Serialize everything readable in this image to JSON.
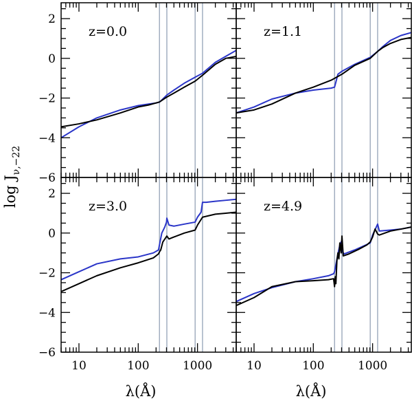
{
  "chart_data": {
    "type": "line",
    "layout": "2x2 grid of panels sharing axes",
    "xlabel": "λ(Å)",
    "ylabel": "log J",
    "ylabel_subscript": "ν,−22",
    "x_scale": "log",
    "xlim": [
      5,
      4500
    ],
    "ylim": [
      -6,
      2.8
    ],
    "x_ticks": [
      10,
      100,
      1000
    ],
    "x_tick_labels": [
      "10",
      "100",
      "1000"
    ],
    "y_ticks": [
      -6,
      -4,
      -2,
      0,
      2
    ],
    "y_tick_labels": [
      "−6",
      "−4",
      "−2",
      "0",
      "2"
    ],
    "vertical_lines": [
      228,
      304,
      912,
      1216
    ],
    "vertical_line_color": "#8a9ab0",
    "colors": {
      "blue": "#2a35c8",
      "black": "#000000"
    },
    "panels": [
      {
        "label": "z=0.0",
        "series": [
          {
            "color": "blue",
            "points": [
              [
                5,
                -4.0
              ],
              [
                10,
                -3.45
              ],
              [
                20,
                -3.0
              ],
              [
                50,
                -2.6
              ],
              [
                100,
                -2.38
              ],
              [
                150,
                -2.3
              ],
              [
                200,
                -2.25
              ],
              [
                228,
                -2.2
              ],
              [
                240,
                -2.15
              ],
              [
                304,
                -1.85
              ],
              [
                400,
                -1.6
              ],
              [
                600,
                -1.25
              ],
              [
                912,
                -0.95
              ],
              [
                1216,
                -0.75
              ],
              [
                2000,
                -0.2
              ],
              [
                3000,
                0.1
              ],
              [
                4500,
                0.4
              ]
            ]
          },
          {
            "color": "black",
            "points": [
              [
                5,
                -3.45
              ],
              [
                10,
                -3.3
              ],
              [
                20,
                -3.1
              ],
              [
                50,
                -2.75
              ],
              [
                100,
                -2.45
              ],
              [
                150,
                -2.35
              ],
              [
                228,
                -2.2
              ],
              [
                304,
                -1.95
              ],
              [
                400,
                -1.75
              ],
              [
                600,
                -1.45
              ],
              [
                912,
                -1.15
              ],
              [
                1216,
                -0.85
              ],
              [
                2000,
                -0.3
              ],
              [
                3000,
                0.0
              ],
              [
                4500,
                0.1
              ]
            ]
          }
        ]
      },
      {
        "label": "z=1.1",
        "series": [
          {
            "color": "blue",
            "points": [
              [
                5,
                -2.75
              ],
              [
                10,
                -2.45
              ],
              [
                20,
                -2.05
              ],
              [
                50,
                -1.75
              ],
              [
                100,
                -1.6
              ],
              [
                200,
                -1.5
              ],
              [
                228,
                -1.45
              ],
              [
                240,
                -1.2
              ],
              [
                260,
                -0.8
              ],
              [
                304,
                -0.65
              ],
              [
                500,
                -0.3
              ],
              [
                912,
                0.05
              ],
              [
                1216,
                0.35
              ],
              [
                1500,
                0.6
              ],
              [
                2000,
                0.9
              ],
              [
                3000,
                1.15
              ],
              [
                4500,
                1.3
              ]
            ]
          },
          {
            "color": "black",
            "points": [
              [
                5,
                -2.75
              ],
              [
                10,
                -2.6
              ],
              [
                20,
                -2.3
              ],
              [
                50,
                -1.75
              ],
              [
                100,
                -1.45
              ],
              [
                200,
                -1.1
              ],
              [
                304,
                -0.8
              ],
              [
                500,
                -0.35
              ],
              [
                912,
                0.0
              ],
              [
                1216,
                0.35
              ],
              [
                1500,
                0.55
              ],
              [
                2000,
                0.75
              ],
              [
                3000,
                0.95
              ],
              [
                4500,
                1.05
              ]
            ]
          }
        ]
      },
      {
        "label": "z=3.0",
        "series": [
          {
            "color": "blue",
            "points": [
              [
                5,
                -2.35
              ],
              [
                10,
                -1.95
              ],
              [
                20,
                -1.55
              ],
              [
                50,
                -1.3
              ],
              [
                100,
                -1.2
              ],
              [
                180,
                -1.0
              ],
              [
                220,
                -0.85
              ],
              [
                228,
                -0.6
              ],
              [
                250,
                0.0
              ],
              [
                280,
                0.3
              ],
              [
                300,
                0.55
              ],
              [
                304,
                0.75
              ],
              [
                330,
                0.4
              ],
              [
                400,
                0.35
              ],
              [
                600,
                0.45
              ],
              [
                912,
                0.55
              ],
              [
                1000,
                0.8
              ],
              [
                1150,
                1.05
              ],
              [
                1216,
                1.55
              ],
              [
                1400,
                1.55
              ],
              [
                2000,
                1.6
              ],
              [
                3000,
                1.65
              ],
              [
                4500,
                1.7
              ]
            ]
          },
          {
            "color": "black",
            "points": [
              [
                5,
                -2.95
              ],
              [
                10,
                -2.55
              ],
              [
                20,
                -2.15
              ],
              [
                50,
                -1.75
              ],
              [
                100,
                -1.5
              ],
              [
                180,
                -1.25
              ],
              [
                220,
                -1.05
              ],
              [
                228,
                -0.95
              ],
              [
                240,
                -0.85
              ],
              [
                260,
                -0.45
              ],
              [
                304,
                -0.15
              ],
              [
                330,
                -0.3
              ],
              [
                400,
                -0.2
              ],
              [
                600,
                0.0
              ],
              [
                912,
                0.15
              ],
              [
                1000,
                0.4
              ],
              [
                1216,
                0.8
              ],
              [
                2000,
                0.95
              ],
              [
                3000,
                1.0
              ],
              [
                4500,
                1.05
              ]
            ]
          }
        ]
      },
      {
        "label": "z=4.9",
        "series": [
          {
            "color": "blue",
            "points": [
              [
                5,
                -3.45
              ],
              [
                10,
                -3.05
              ],
              [
                20,
                -2.75
              ],
              [
                50,
                -2.45
              ],
              [
                100,
                -2.3
              ],
              [
                180,
                -2.15
              ],
              [
                220,
                -2.05
              ],
              [
                228,
                -1.95
              ],
              [
                260,
                -1.05
              ],
              [
                280,
                -0.6
              ],
              [
                300,
                -0.4
              ],
              [
                304,
                -0.9
              ],
              [
                330,
                -1.05
              ],
              [
                500,
                -0.85
              ],
              [
                912,
                -0.5
              ],
              [
                1000,
                -0.1
              ],
              [
                1216,
                0.45
              ],
              [
                1300,
                0.1
              ],
              [
                2000,
                0.15
              ],
              [
                3000,
                0.2
              ],
              [
                4500,
                0.3
              ]
            ]
          },
          {
            "color": "black",
            "points": [
              [
                5,
                -3.65
              ],
              [
                10,
                -3.25
              ],
              [
                20,
                -2.7
              ],
              [
                50,
                -2.45
              ],
              [
                100,
                -2.4
              ],
              [
                180,
                -2.35
              ],
              [
                220,
                -2.3
              ],
              [
                228,
                -2.7
              ],
              [
                235,
                -2.2
              ],
              [
                240,
                -2.55
              ],
              [
                250,
                -1.4
              ],
              [
                260,
                -1.0
              ],
              [
                270,
                -1.3
              ],
              [
                280,
                -0.5
              ],
              [
                295,
                -1.0
              ],
              [
                304,
                -0.15
              ],
              [
                320,
                -1.15
              ],
              [
                400,
                -1.05
              ],
              [
                600,
                -0.8
              ],
              [
                800,
                -0.6
              ],
              [
                912,
                -0.45
              ],
              [
                1000,
                -0.2
              ],
              [
                1100,
                0.2
              ],
              [
                1216,
                -0.05
              ],
              [
                1300,
                -0.1
              ],
              [
                2000,
                0.1
              ],
              [
                3000,
                0.2
              ],
              [
                4500,
                0.3
              ]
            ]
          }
        ]
      }
    ]
  }
}
